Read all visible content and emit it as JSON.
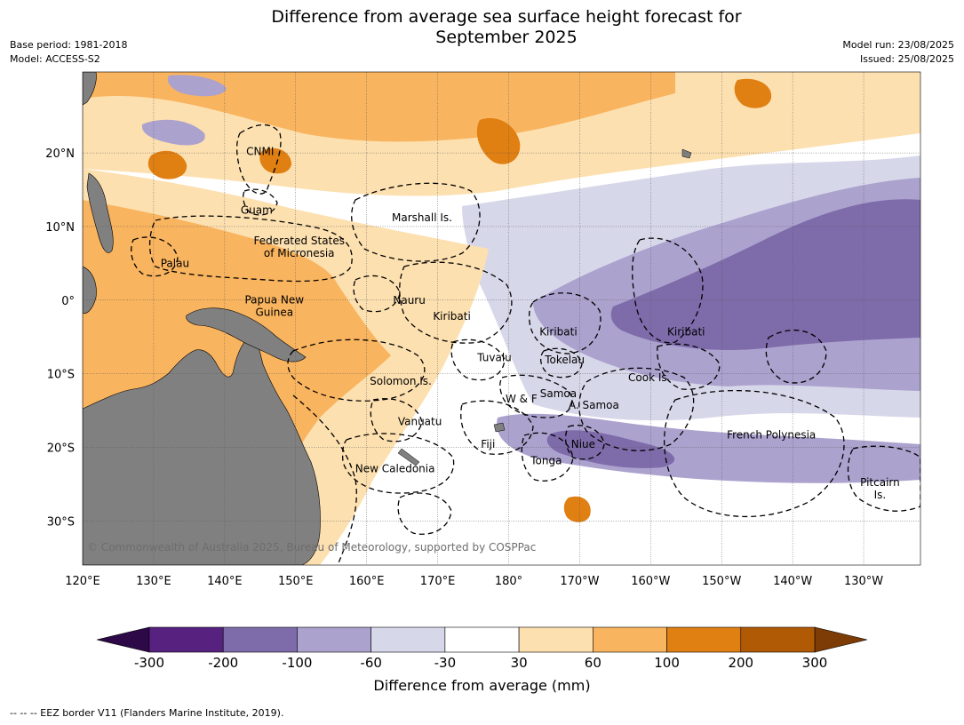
{
  "title_line1": "Difference from average sea surface height forecast for",
  "title_line2": "September 2025",
  "meta_left": [
    "Base period: 1981-2018",
    "Model: ACCESS-S2"
  ],
  "meta_right": [
    "Model run: 23/08/2025",
    "Issued: 25/08/2025"
  ],
  "copyright": "© Commonwealth of Australia 2025, Bureau of Meteorology, supported by COSPPac",
  "footnote": "--  --  -- EEZ border V11 (Flanders Marine Institute, 2019).",
  "map": {
    "lon_range": [
      120,
      238
    ],
    "lat_range": [
      -36,
      31
    ],
    "lon_ticks": [
      {
        "lon": 120,
        "label": "120°E"
      },
      {
        "lon": 130,
        "label": "130°E"
      },
      {
        "lon": 140,
        "label": "140°E"
      },
      {
        "lon": 150,
        "label": "150°E"
      },
      {
        "lon": 160,
        "label": "160°E"
      },
      {
        "lon": 170,
        "label": "170°E"
      },
      {
        "lon": 180,
        "label": "180°"
      },
      {
        "lon": 190,
        "label": "170°W"
      },
      {
        "lon": 200,
        "label": "160°W"
      },
      {
        "lon": 210,
        "label": "150°W"
      },
      {
        "lon": 220,
        "label": "140°W"
      },
      {
        "lon": 230,
        "label": "130°W"
      }
    ],
    "lat_ticks": [
      {
        "lat": 20,
        "label": "20°N"
      },
      {
        "lat": 10,
        "label": "10°N"
      },
      {
        "lat": 0,
        "label": "0°"
      },
      {
        "lat": -10,
        "label": "10°S"
      },
      {
        "lat": -20,
        "label": "20°S"
      },
      {
        "lat": -30,
        "label": "30°S"
      }
    ],
    "place_labels": [
      {
        "lines": [
          "CNMI"
        ],
        "lon": 145.0,
        "lat": 20.2
      },
      {
        "lines": [
          "Guam"
        ],
        "lon": 144.5,
        "lat": 12.2
      },
      {
        "lines": [
          "Marshall Is."
        ],
        "lon": 167.8,
        "lat": 11.2
      },
      {
        "lines": [
          "Federated States",
          "of Micronesia"
        ],
        "lon": 150.5,
        "lat": 7.2
      },
      {
        "lines": [
          "Palau"
        ],
        "lon": 133.0,
        "lat": 5.0
      },
      {
        "lines": [
          "Papua New",
          "Guinea"
        ],
        "lon": 147.0,
        "lat": -0.8
      },
      {
        "lines": [
          "Nauru"
        ],
        "lon": 166.0,
        "lat": 0.0
      },
      {
        "lines": [
          "Kiribati"
        ],
        "lon": 172.0,
        "lat": -2.2
      },
      {
        "lines": [
          "Kiribati"
        ],
        "lon": 187.0,
        "lat": -4.3
      },
      {
        "lines": [
          "Kiribati"
        ],
        "lon": 205.0,
        "lat": -4.3
      },
      {
        "lines": [
          "Tuvalu"
        ],
        "lon": 178.0,
        "lat": -7.8
      },
      {
        "lines": [
          "Tokelau"
        ],
        "lon": 187.9,
        "lat": -8.1
      },
      {
        "lines": [
          "Cook Is."
        ],
        "lon": 199.8,
        "lat": -10.5
      },
      {
        "lines": [
          "Solomon Is."
        ],
        "lon": 164.8,
        "lat": -11.0
      },
      {
        "lines": [
          "Samoa"
        ],
        "lon": 187.0,
        "lat": -12.7
      },
      {
        "lines": [
          "W & F"
        ],
        "lon": 181.8,
        "lat": -13.4
      },
      {
        "lines": [
          "A. Samoa"
        ],
        "lon": 192.0,
        "lat": -14.3
      },
      {
        "lines": [
          "Vanuatu"
        ],
        "lon": 167.5,
        "lat": -16.5
      },
      {
        "lines": [
          "Fiji"
        ],
        "lon": 177.1,
        "lat": -19.6
      },
      {
        "lines": [
          "Niue"
        ],
        "lon": 190.5,
        "lat": -19.6
      },
      {
        "lines": [
          "French Polynesia"
        ],
        "lon": 217.0,
        "lat": -18.3
      },
      {
        "lines": [
          "Tonga"
        ],
        "lon": 185.3,
        "lat": -21.8
      },
      {
        "lines": [
          "New Caledonia"
        ],
        "lon": 164.0,
        "lat": -22.9
      },
      {
        "lines": [
          "Pitcairn",
          "Is."
        ],
        "lon": 232.3,
        "lat": -25.6
      }
    ]
  },
  "colorbar": {
    "title": "Difference from average (mm)",
    "boundaries": [
      "-300",
      "-200",
      "-100",
      "-60",
      "-30",
      "30",
      "60",
      "100",
      "200",
      "300"
    ],
    "colors": [
      "#56217f",
      "#7e6baa",
      "#aca2ce",
      "#d7d7ea",
      "#ffffff",
      "#fde0b0",
      "#f9b45f",
      "#e07f12",
      "#b15a06"
    ],
    "extend_low_color": "#2d0a47",
    "extend_high_color": "#7d3c06"
  },
  "land_color": "#808080",
  "palette": {
    "deep_purple": "#7e6baa",
    "mid_purple": "#aca2ce",
    "light_purple": "#d7d7ea",
    "light_orange": "#fde0b0",
    "mid_orange": "#f9b45f",
    "dark_orange": "#e07f12",
    "darkest_orange": "#b15a06"
  }
}
